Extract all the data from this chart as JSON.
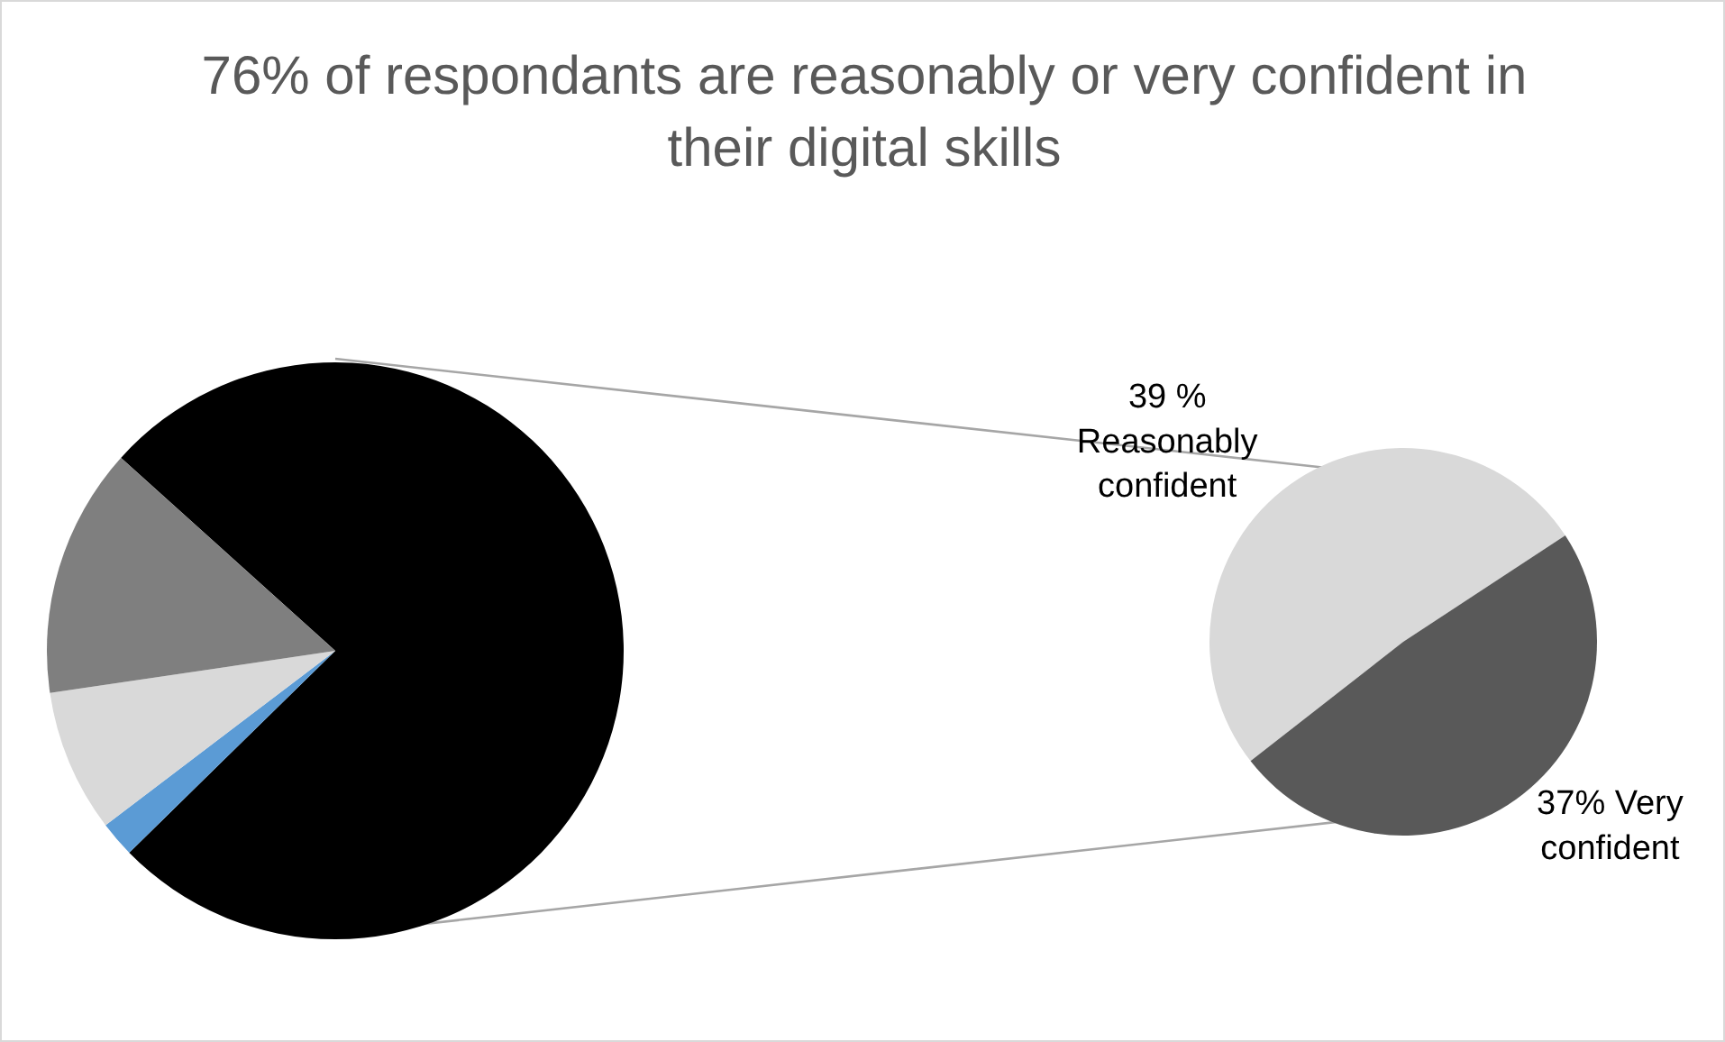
{
  "chart_data": [
    {
      "type": "pie",
      "title": "76% of respondants are reasonably or very confident in their digital skills",
      "categories": [
        null,
        null,
        null,
        null
      ],
      "values": [
        76,
        2,
        8,
        14
      ],
      "colors": [
        "#000000",
        "#5b9bd5",
        "#d9d9d9",
        "#7f7f7f"
      ],
      "legend": false
    },
    {
      "type": "pie",
      "categories": [
        "Reasonably confident",
        "Very confident"
      ],
      "values": [
        39,
        37
      ],
      "value_labels": [
        "39 %",
        "37%"
      ],
      "colors": [
        "#d9d9d9",
        "#595959"
      ],
      "legend": false
    }
  ]
}
